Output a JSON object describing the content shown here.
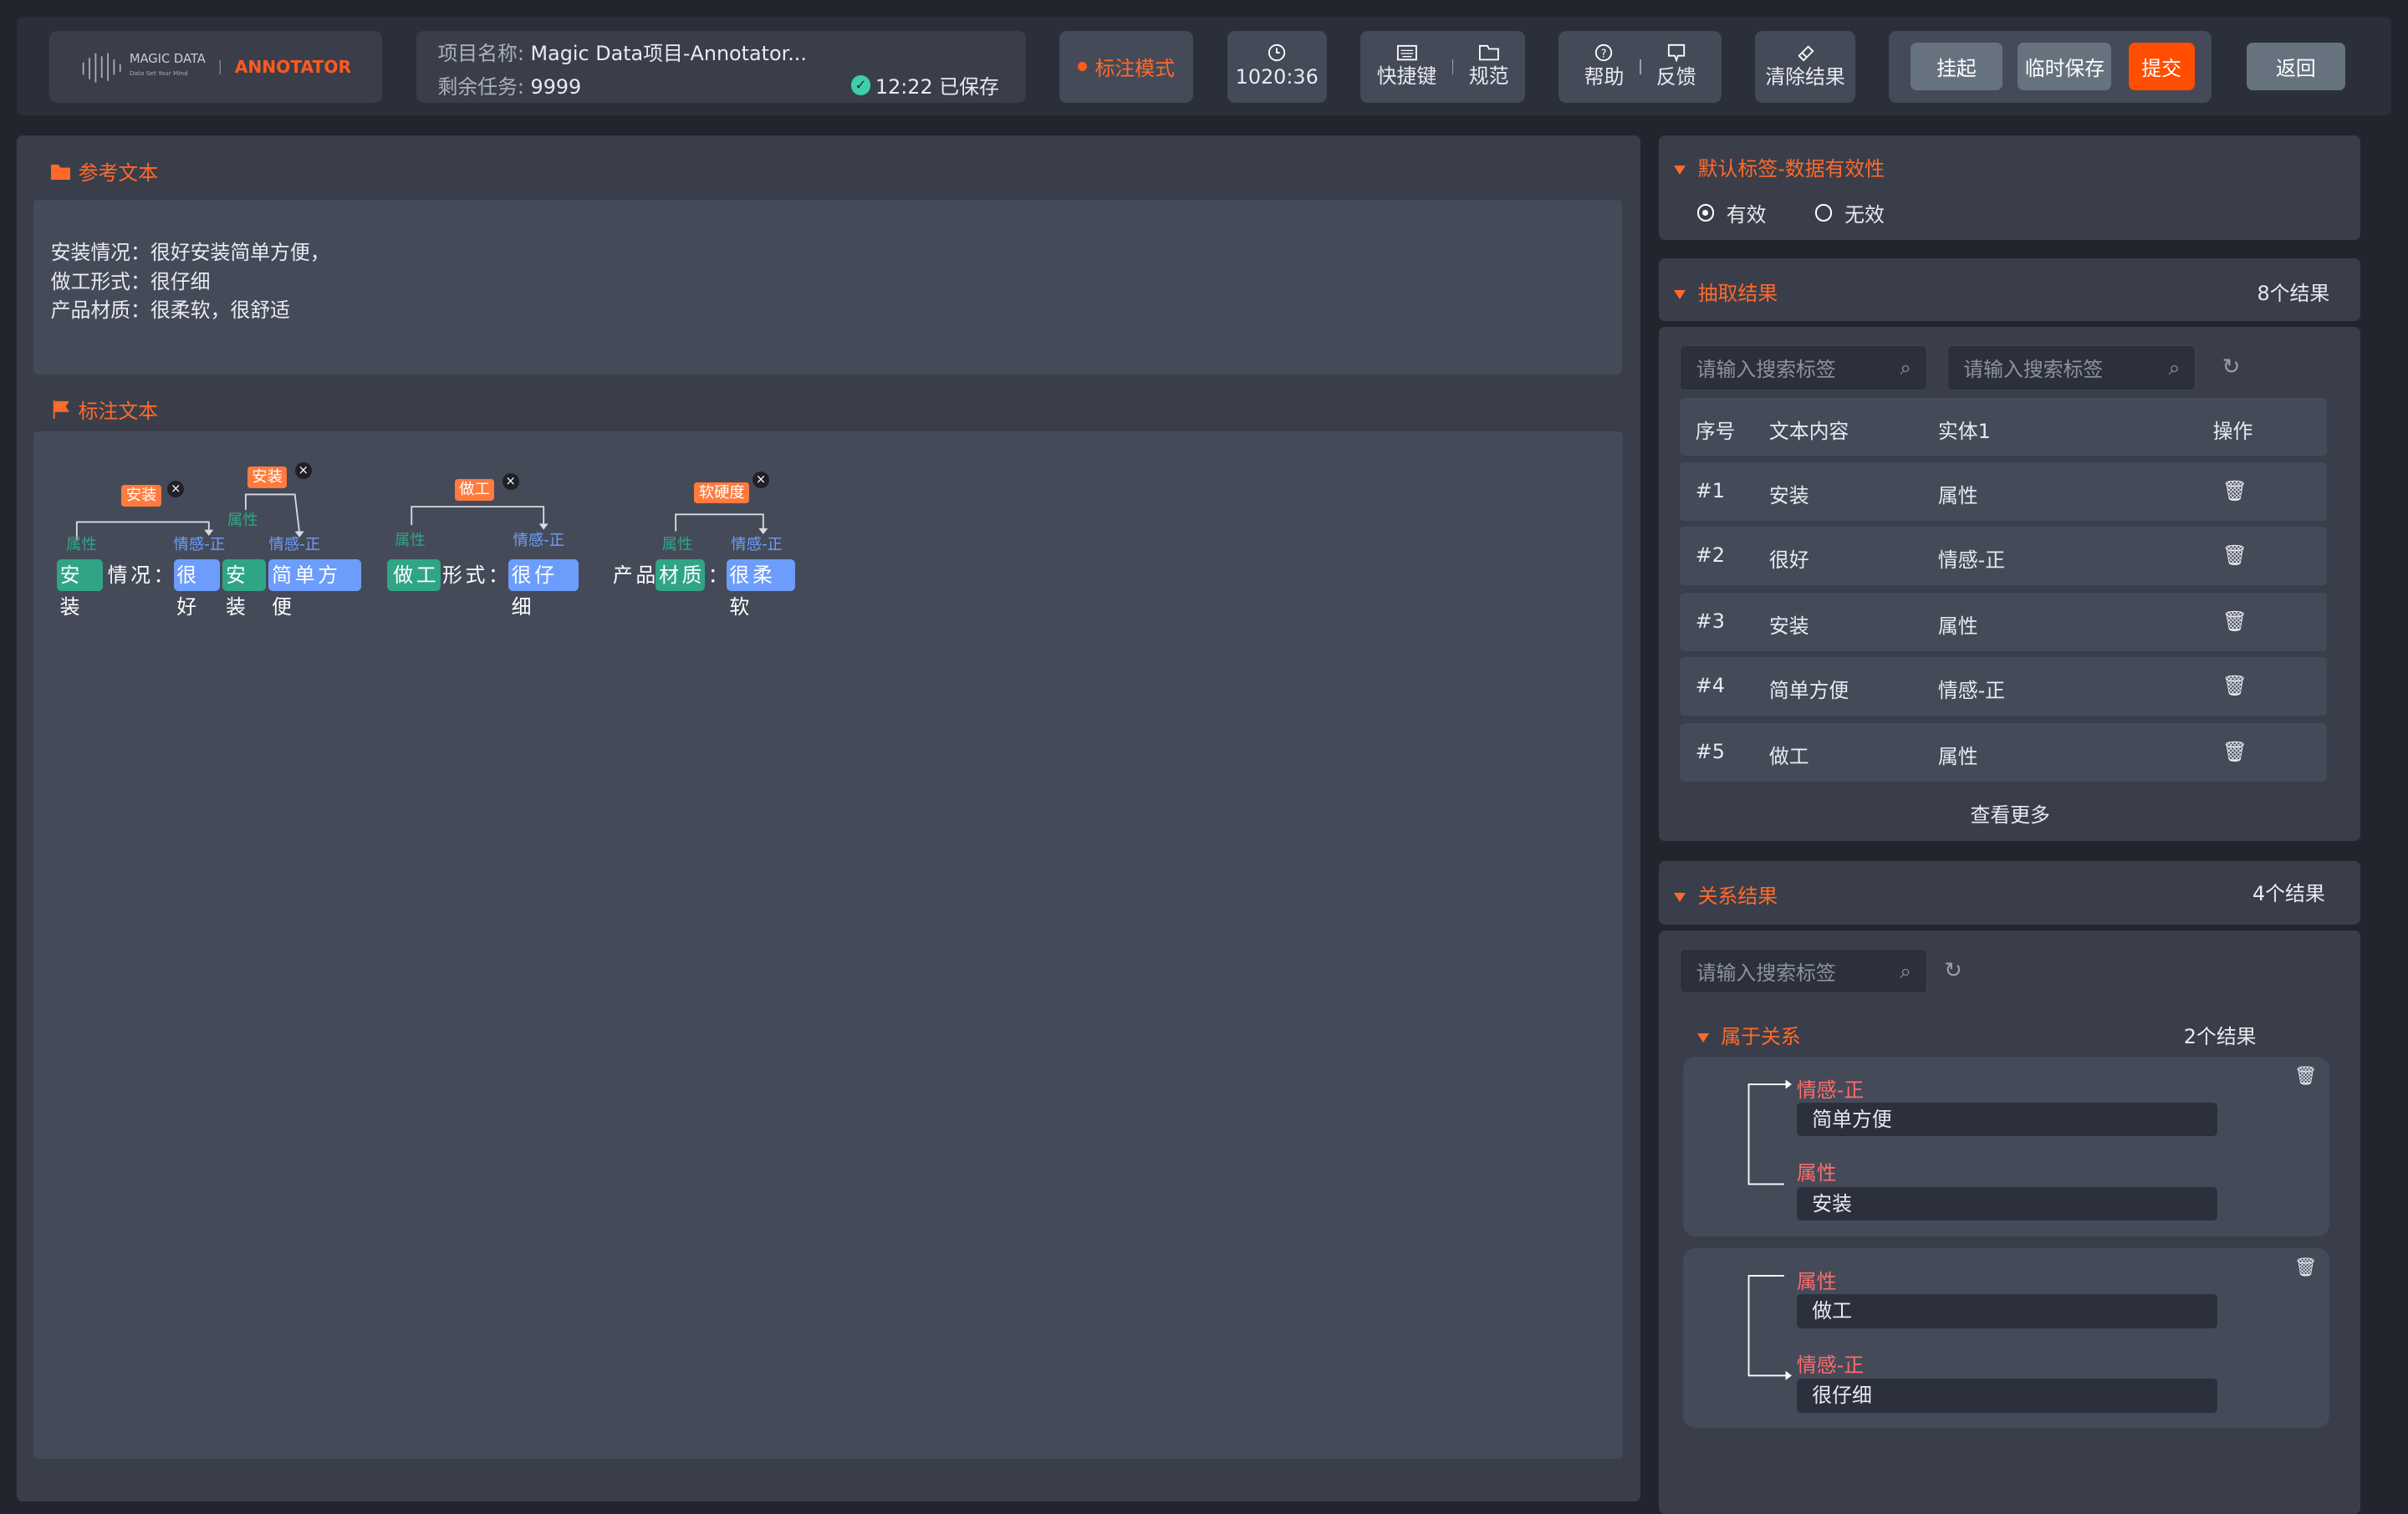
{
  "header": {
    "logo": {
      "brand": "MAGIC DATA",
      "tagline": "Data Set Your Mind",
      "product": "ANNOTATOR"
    },
    "project_label": "项目名称:",
    "project_name": "Magic Data项目-Annotator...",
    "remaining_label": "剩余任务:",
    "remaining_value": "9999",
    "save_status": "12:22 已保存",
    "mode": "标注模式",
    "timer": "1020:36",
    "shortcuts": "快捷键",
    "spec": "规范",
    "help": "帮助",
    "feedback": "反馈",
    "clear": "清除结果",
    "suspend": "挂起",
    "temp_save": "临时保存",
    "submit": "提交",
    "back": "返回"
  },
  "reference": {
    "title": "参考文本",
    "lines": [
      "安装情况：很好安装简单方便，",
      "做工形式：很仔细",
      "产品材质：很柔软，很舒适"
    ]
  },
  "annotation": {
    "title": "标注文本",
    "tokens": [
      "安装",
      "情况：",
      "很好",
      "安装",
      "简单方便",
      "做工",
      "形式：",
      "很仔细",
      "产品",
      "材质",
      "：",
      "很柔软"
    ],
    "labels": [
      "属性",
      "情感-正",
      "属性",
      "情感-正",
      "属性",
      "情感-正",
      "属性",
      "情感-正"
    ],
    "relations": [
      "安装",
      "安装",
      "做工",
      "软硬度"
    ],
    "close": "×"
  },
  "default_label": {
    "title": "默认标签-数据有效性",
    "options": [
      {
        "label": "有效",
        "selected": true
      },
      {
        "label": "无效",
        "selected": false
      }
    ]
  },
  "extraction": {
    "title": "抽取结果",
    "count": "8个结果",
    "search_placeholder": "请输入搜索标签",
    "columns": [
      "序号",
      "文本内容",
      "实体1",
      "操作"
    ],
    "rows": [
      {
        "id": "#1",
        "text": "安装",
        "entity": "属性"
      },
      {
        "id": "#2",
        "text": "很好",
        "entity": "情感-正"
      },
      {
        "id": "#3",
        "text": "安装",
        "entity": "属性"
      },
      {
        "id": "#4",
        "text": "简单方便",
        "entity": "情感-正"
      },
      {
        "id": "#5",
        "text": "做工",
        "entity": "属性"
      }
    ],
    "more": "查看更多"
  },
  "relation": {
    "title": "关系结果",
    "count": "4个结果",
    "search_placeholder": "请输入搜索标签",
    "group_title": "属于关系",
    "group_count": "2个结果",
    "items": [
      {
        "from_label": "情感-正",
        "from_value": "简单方便",
        "to_label": "属性",
        "to_value": "安装"
      },
      {
        "from_label": "属性",
        "from_value": "做工",
        "to_label": "情感-正",
        "to_value": "很仔细"
      }
    ]
  },
  "colors": {
    "accent": "#ff5a1f",
    "entity_green": "#2fa586",
    "entity_blue": "#6c9dfc",
    "relation_label": "#ff6b6b",
    "saved": "#3ecfa8"
  }
}
